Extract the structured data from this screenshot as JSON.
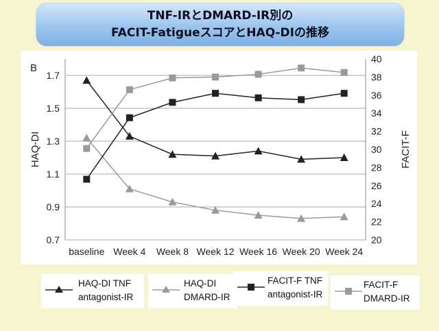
{
  "title": {
    "line1": "TNF-IRとDMARD-IR別の",
    "line2": "FACIT-FatigueスコアとHAQ-DIの推移"
  },
  "panel_label": "B",
  "chart_data": {
    "type": "line",
    "categories": [
      "baseline",
      "Week 4",
      "Week 8",
      "Week 12",
      "Week 16",
      "Week 20",
      "Week 24"
    ],
    "ylabel": "HAQ-DI",
    "y2label": "FACIT-F",
    "ylim": [
      0.7,
      1.8
    ],
    "y2lim": [
      20,
      40
    ],
    "yticks": [
      "1.7",
      "1.5",
      "1.3",
      "1.1",
      "0.9",
      "0.7"
    ],
    "y2ticks": [
      "40",
      "38",
      "36",
      "34",
      "32",
      "30",
      "28",
      "26",
      "24",
      "22",
      "20"
    ],
    "grid": true,
    "legend_position": "bottom",
    "series": [
      {
        "name": "HAQ-DI TNF antagonist-IR",
        "axis": "left",
        "marker": "triangle",
        "color": "#222222",
        "values": [
          1.67,
          1.33,
          1.22,
          1.21,
          1.24,
          1.19,
          1.2
        ]
      },
      {
        "name": "HAQ-DI DMARD-IR",
        "axis": "left",
        "marker": "triangle",
        "color": "#9a9a9a",
        "values": [
          1.32,
          1.01,
          0.93,
          0.88,
          0.85,
          0.83,
          0.84
        ]
      },
      {
        "name": "FACIT-F TNF antagonist-IR",
        "axis": "right",
        "marker": "square",
        "color": "#222222",
        "values": [
          26.7,
          33.5,
          35.2,
          36.2,
          35.7,
          35.5,
          36.2
        ]
      },
      {
        "name": "FACIT-F DMARD-IR",
        "axis": "right",
        "marker": "square",
        "color": "#9a9a9a",
        "values": [
          30.1,
          36.6,
          37.9,
          38.0,
          38.3,
          39.0,
          38.5
        ]
      }
    ]
  },
  "legend": [
    {
      "line1": "HAQ-DI TNF",
      "line2": "antagonist-IR"
    },
    {
      "line1": "HAQ-DI",
      "line2": "DMARD-IR"
    },
    {
      "line1": "FACIT-F TNF",
      "line2": "antagonist-IR"
    },
    {
      "line1": "FACIT-F",
      "line2": "DMARD-IR"
    }
  ]
}
